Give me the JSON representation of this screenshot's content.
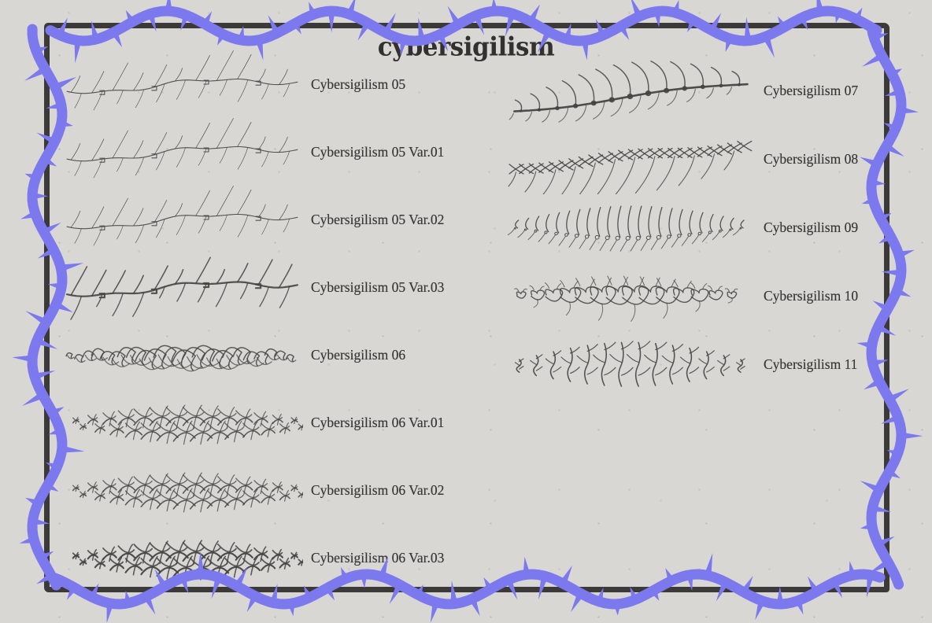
{
  "page": {
    "title": "cybersigilism"
  },
  "colors": {
    "background": "#d8d7d4",
    "frame": "#3b3a38",
    "vine": "#7c79ee",
    "ink": "#454443",
    "label_text": "#3a3938",
    "title_text": "#32312f"
  },
  "decor": {
    "border": "thorn-vine-frame",
    "icons": [
      "thorn-vine-icon",
      "hand-drawn-frame-icon"
    ]
  },
  "columns": {
    "left": {
      "rows": [
        {
          "label": "Cybersigilism 05",
          "brush": "thorn-script-thin"
        },
        {
          "label": "Cybersigilism 05 Var.01",
          "brush": "thorn-script-thin"
        },
        {
          "label": "Cybersigilism 05 Var.02",
          "brush": "thorn-script-thin"
        },
        {
          "label": "Cybersigilism 05 Var.03",
          "brush": "thorn-script-bold"
        },
        {
          "label": "Cybersigilism 06",
          "brush": "braid-hooks"
        },
        {
          "label": "Cybersigilism 06 Var.01",
          "brush": "claw-cluster"
        },
        {
          "label": "Cybersigilism 06 Var.02",
          "brush": "claw-cluster"
        },
        {
          "label": "Cybersigilism 06 Var.03",
          "brush": "claw-cluster-bold"
        }
      ]
    },
    "right": {
      "rows": [
        {
          "label": "Cybersigilism 07",
          "brush": "scallop-spine"
        },
        {
          "label": "Cybersigilism 08",
          "brush": "barbed-spine"
        },
        {
          "label": "Cybersigilism 09",
          "brush": "hook-fern"
        },
        {
          "label": "Cybersigilism 10",
          "brush": "heart-thorns"
        },
        {
          "label": "Cybersigilism 11",
          "brush": "branch-thorns"
        }
      ]
    }
  }
}
